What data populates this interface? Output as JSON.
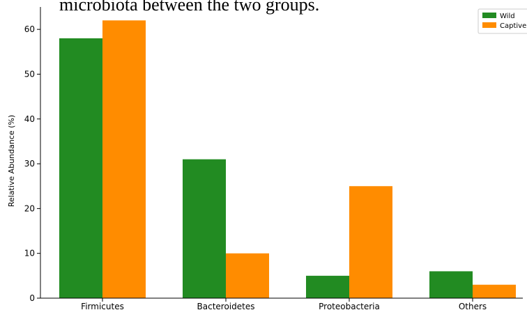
{
  "caption": "microbiota between the two groups.",
  "chart_data": {
    "type": "bar",
    "categories": [
      "Firmicutes",
      "Bacteroidetes",
      "Proteobacteria",
      "Others"
    ],
    "series": [
      {
        "name": "Wild",
        "values": [
          58,
          31,
          5,
          6
        ],
        "color": "#228b22"
      },
      {
        "name": "Captive",
        "values": [
          62,
          10,
          25,
          3
        ],
        "color": "#ff8c00"
      }
    ],
    "title": "",
    "xlabel": "",
    "ylabel": "Relative Abundance (%)",
    "ylim": [
      0,
      65
    ],
    "yticks": [
      0,
      10,
      20,
      30,
      40,
      50,
      60
    ],
    "grid": false,
    "legend": "top-right"
  }
}
